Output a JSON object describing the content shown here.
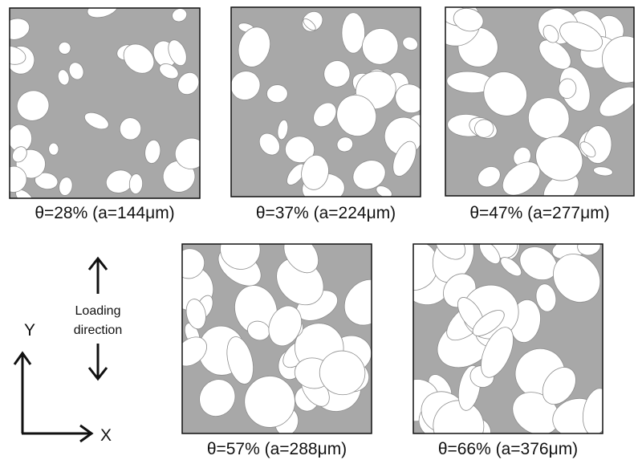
{
  "panels": [
    {
      "label": "θ=28% (a=144μm)"
    },
    {
      "label": "θ=37% (a=224μm)"
    },
    {
      "label": "θ=47% (a=277μm)"
    },
    {
      "label": "θ=57% (a=288μm)"
    },
    {
      "label": "θ=66% (a=376μm)"
    }
  ],
  "loading": {
    "line1": "Loading",
    "line2": "direction"
  },
  "axes": {
    "y": "Y",
    "x": "X"
  }
}
